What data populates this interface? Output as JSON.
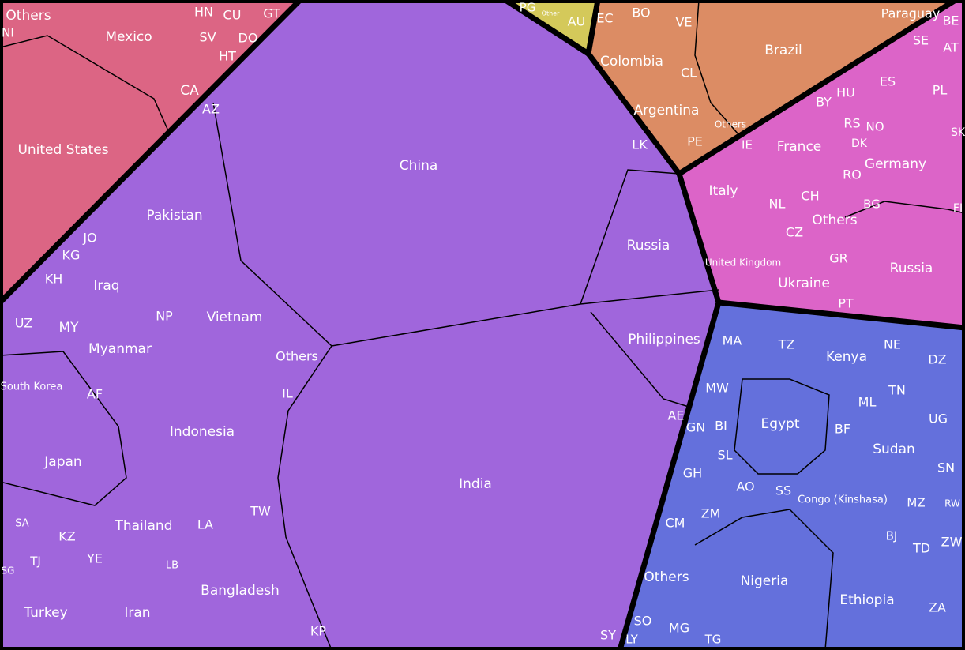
{
  "chart_data": {
    "type": "voronoi-treemap",
    "groups": [
      {
        "color": "#dc6584",
        "cells": [
          "Others",
          "NI",
          "Mexico",
          "HN",
          "CU",
          "GT",
          "SV",
          "DO",
          "HT",
          "CA",
          "United States"
        ]
      },
      {
        "color": "#d4c95a",
        "cells": [
          "PG",
          "Other",
          "AU"
        ]
      },
      {
        "color": "#dc8c64",
        "cells": [
          "EC",
          "BO",
          "VE",
          "Paraguay",
          "Colombia",
          "Brazil",
          "CL",
          "Argentina",
          "Others",
          "PE"
        ]
      },
      {
        "color": "#dc64c8",
        "cells": [
          "BE",
          "SE",
          "AT",
          "ES",
          "PL",
          "HU",
          "BY",
          "RS",
          "NO",
          "SK",
          "IE",
          "France",
          "DK",
          "Germany",
          "RO",
          "Italy",
          "CH",
          "NL",
          "BG",
          "FI",
          "Others",
          "CZ",
          "United Kingdom",
          "GR",
          "Russia",
          "Ukraine",
          "PT"
        ]
      },
      {
        "color": "#a066dc",
        "cells": [
          "AZ",
          "China",
          "LK",
          "Pakistan",
          "Russia",
          "JO",
          "KG",
          "KH",
          "Iraq",
          "UZ",
          "MY",
          "NP",
          "Vietnam",
          "Myanmar",
          "Others",
          "Philippines",
          "South Korea",
          "AF",
          "IL",
          "AE",
          "Indonesia",
          "Japan",
          "India",
          "TW",
          "SA",
          "Thailand",
          "KZ",
          "LA",
          "YE",
          "TJ",
          "SG",
          "LB",
          "Bangladesh",
          "Turkey",
          "Iran",
          "KP",
          "SY"
        ]
      },
      {
        "color": "#6470dc",
        "cells": [
          "MA",
          "TZ",
          "Kenya",
          "NE",
          "DZ",
          "MW",
          "TN",
          "ML",
          "Egypt",
          "UG",
          "GN",
          "BI",
          "BF",
          "Sudan",
          "SL",
          "SN",
          "GH",
          "AO",
          "SS",
          "Congo (Kinshasa)",
          "MZ",
          "RW",
          "ZM",
          "CM",
          "BJ",
          "ZW",
          "TD",
          "Others",
          "Nigeria",
          "Ethiopia",
          "ZA",
          "SO",
          "MG",
          "LY",
          "TG"
        ]
      }
    ]
  }
}
